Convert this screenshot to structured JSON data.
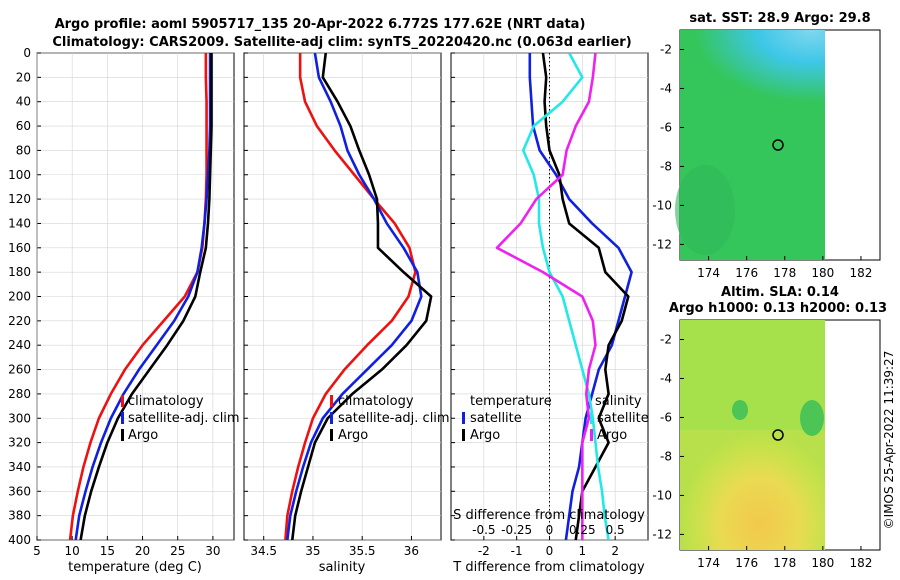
{
  "titles": {
    "line1": "Argo profile: aoml 5905717_135 20-Apr-2022 6.772S 177.62E (NRT data)",
    "line2": "Climatology: CARS2009. Satellite-adj clim: synTS_20220420.nc (0.063d earlier)"
  },
  "depth_ticks": [
    "0",
    "20",
    "40",
    "60",
    "80",
    "100",
    "120",
    "140",
    "160",
    "180",
    "200",
    "220",
    "240",
    "260",
    "280",
    "300",
    "320",
    "340",
    "360",
    "380",
    "400"
  ],
  "legend_labels": {
    "climatology": "climatology",
    "satellite_adj": "satellite-adj. clim",
    "argo": "Argo",
    "temperature": "temperature",
    "salinity": "salinity",
    "satellite": "satellite"
  },
  "colors": {
    "climatology": "#ee1111",
    "satellite": "#1020e0",
    "argo": "#000000",
    "t_diff": "#22e8e8",
    "s_diff": "#ee22ee"
  },
  "chart_data": [
    {
      "type": "line",
      "title": "",
      "xlabel": "temperature (deg C)",
      "ylabel": "",
      "xlim": [
        5,
        33
      ],
      "ylim": [
        400,
        0
      ],
      "xticks": [
        "5",
        "10",
        "15",
        "20",
        "25",
        "30"
      ],
      "series": [
        {
          "name": "climatology",
          "color": "#ee1111",
          "x": [
            29.0,
            29.0,
            29.1,
            29.1,
            29.1,
            29.1,
            29.0,
            28.8,
            28.5,
            27.8,
            26.0,
            23.0,
            20.0,
            17.5,
            15.5,
            13.8,
            12.6,
            11.6,
            10.8,
            10.1,
            9.7
          ],
          "y": [
            0,
            20,
            40,
            60,
            80,
            100,
            120,
            140,
            160,
            180,
            200,
            220,
            240,
            260,
            280,
            300,
            320,
            340,
            360,
            380,
            400
          ]
        },
        {
          "name": "satellite-adj. clim",
          "color": "#1020e0",
          "x": [
            29.6,
            29.6,
            29.6,
            29.6,
            29.5,
            29.3,
            29.1,
            28.8,
            28.4,
            27.8,
            26.5,
            24.5,
            22.0,
            19.5,
            17.3,
            15.5,
            14.1,
            12.9,
            11.9,
            11.0,
            10.5
          ],
          "y": [
            0,
            20,
            40,
            60,
            80,
            100,
            120,
            140,
            160,
            180,
            200,
            220,
            240,
            260,
            280,
            300,
            320,
            340,
            360,
            380,
            400
          ]
        },
        {
          "name": "Argo",
          "color": "#000000",
          "x": [
            29.8,
            29.8,
            29.8,
            29.8,
            29.7,
            29.6,
            29.5,
            29.3,
            29.0,
            28.2,
            27.5,
            25.8,
            23.5,
            21.0,
            18.5,
            16.5,
            15.0,
            13.8,
            12.7,
            11.8,
            11.2
          ],
          "y": [
            0,
            20,
            40,
            60,
            80,
            100,
            120,
            140,
            160,
            180,
            200,
            220,
            240,
            260,
            280,
            300,
            320,
            340,
            360,
            380,
            400
          ]
        }
      ]
    },
    {
      "type": "line",
      "title": "",
      "xlabel": "salinity",
      "ylabel": "",
      "xlim": [
        34.3,
        36.3
      ],
      "ylim": [
        400,
        0
      ],
      "xticks": [
        "34.5",
        "35",
        "35.5",
        "36"
      ],
      "series": [
        {
          "name": "climatology",
          "color": "#ee1111",
          "x": [
            34.87,
            34.87,
            34.92,
            35.04,
            35.22,
            35.42,
            35.62,
            35.83,
            35.98,
            36.04,
            35.97,
            35.8,
            35.55,
            35.32,
            35.13,
            35.0,
            34.92,
            34.85,
            34.79,
            34.74,
            34.72
          ],
          "y": [
            0,
            20,
            40,
            60,
            80,
            100,
            120,
            140,
            160,
            180,
            200,
            220,
            240,
            260,
            280,
            300,
            320,
            340,
            360,
            380,
            400
          ]
        },
        {
          "name": "satellite-adj. clim",
          "color": "#1020e0",
          "x": [
            35.02,
            35.06,
            35.18,
            35.28,
            35.35,
            35.47,
            35.62,
            35.75,
            35.92,
            36.06,
            36.1,
            36.0,
            35.8,
            35.55,
            35.3,
            35.1,
            34.98,
            34.9,
            34.83,
            34.77,
            34.74
          ],
          "y": [
            0,
            20,
            40,
            60,
            80,
            100,
            120,
            140,
            160,
            180,
            200,
            220,
            240,
            260,
            280,
            300,
            320,
            340,
            360,
            380,
            400
          ]
        },
        {
          "name": "Argo",
          "color": "#000000",
          "x": [
            35.13,
            35.1,
            35.25,
            35.38,
            35.47,
            35.57,
            35.65,
            35.66,
            35.66,
            35.92,
            36.2,
            36.15,
            35.95,
            35.7,
            35.4,
            35.15,
            35.02,
            34.95,
            34.88,
            34.82,
            34.79
          ],
          "y": [
            0,
            20,
            40,
            60,
            80,
            100,
            120,
            140,
            160,
            180,
            200,
            220,
            240,
            260,
            280,
            300,
            320,
            340,
            360,
            380,
            400
          ]
        }
      ]
    },
    {
      "type": "line",
      "title": "",
      "xlabel": "T difference from climatology",
      "xlabel_top": "S difference from climatology",
      "xlim": [
        -3,
        3
      ],
      "ylim": [
        400,
        0
      ],
      "xticks": [
        "-2",
        "-1",
        "0",
        "1",
        "2"
      ],
      "xticks_top": [
        "-0.5",
        "-0.25",
        "0",
        "0.25",
        "0.5"
      ],
      "series": [
        {
          "name": "temperature satellite",
          "color": "#1020e0",
          "x": [
            -0.6,
            -0.6,
            -0.55,
            -0.5,
            -0.3,
            0.2,
            0.6,
            1.3,
            2.1,
            2.5,
            2.3,
            2.1,
            1.9,
            1.5,
            1.3,
            1.1,
            1.0,
            0.9,
            0.7,
            0.6,
            0.5
          ],
          "y": [
            0,
            20,
            40,
            60,
            80,
            100,
            120,
            140,
            160,
            180,
            200,
            220,
            240,
            260,
            280,
            300,
            320,
            340,
            360,
            380,
            400
          ]
        },
        {
          "name": "temperature Argo",
          "color": "#000000",
          "x": [
            -0.2,
            -0.1,
            -0.15,
            -0.1,
            0.0,
            0.3,
            0.4,
            0.6,
            1.5,
            1.7,
            2.4,
            2.2,
            1.8,
            1.7,
            1.8,
            1.5,
            1.8,
            1.4,
            1.0,
            0.9,
            0.8
          ],
          "y": [
            0,
            20,
            40,
            60,
            80,
            100,
            120,
            140,
            160,
            180,
            200,
            220,
            240,
            260,
            280,
            300,
            320,
            340,
            360,
            380,
            400
          ]
        },
        {
          "name": "salinity satellite",
          "color": "#22e8e8",
          "x": [
            0.15,
            0.25,
            0.1,
            -0.12,
            -0.2,
            -0.12,
            -0.08,
            -0.08,
            -0.05,
            0.0,
            0.1,
            0.15,
            0.2,
            0.25,
            0.3,
            0.33,
            0.35,
            0.37,
            0.4,
            0.42,
            0.45
          ],
          "y": [
            0,
            20,
            40,
            60,
            80,
            100,
            120,
            140,
            160,
            180,
            200,
            220,
            240,
            260,
            280,
            300,
            320,
            340,
            360,
            380,
            400
          ]
        },
        {
          "name": "salinity Argo",
          "color": "#ee22ee",
          "x": [
            0.35,
            0.33,
            0.3,
            0.2,
            0.13,
            0.1,
            -0.1,
            -0.22,
            -0.4,
            -0.05,
            0.25,
            0.33,
            0.35,
            0.3,
            0.28,
            0.3,
            0.25,
            0.25,
            0.25,
            0.25,
            0.25
          ],
          "y": [
            0,
            20,
            40,
            60,
            80,
            100,
            120,
            140,
            160,
            180,
            200,
            220,
            240,
            260,
            280,
            300,
            320,
            340,
            360,
            380,
            400
          ]
        }
      ]
    },
    {
      "type": "heatmap",
      "title": "sat. SST: 28.9 Argo: 29.8",
      "xlim": [
        172.5,
        183
      ],
      "ylim": [
        -12.8,
        -1
      ],
      "xticks": [
        "174",
        "176",
        "178",
        "180",
        "182"
      ],
      "yticks": [
        "-2",
        "-4",
        "-6",
        "-8",
        "-10",
        "-12"
      ],
      "marker": {
        "lon": 177.62,
        "lat": -6.772
      }
    },
    {
      "type": "heatmap",
      "title": "Altim. SLA: 0.14",
      "subtitle": "Argo h1000: 0.13 h2000: 0.13",
      "xlim": [
        172.5,
        183
      ],
      "ylim": [
        -12.8,
        -1
      ],
      "xticks": [
        "174",
        "176",
        "178",
        "180",
        "182"
      ],
      "yticks": [
        "-2",
        "-4",
        "-6",
        "-8",
        "-10",
        "-12"
      ],
      "marker": {
        "lon": 177.62,
        "lat": -6.772
      }
    }
  ],
  "watermark": "©IMOS 25-Apr-2022 11:39:27"
}
